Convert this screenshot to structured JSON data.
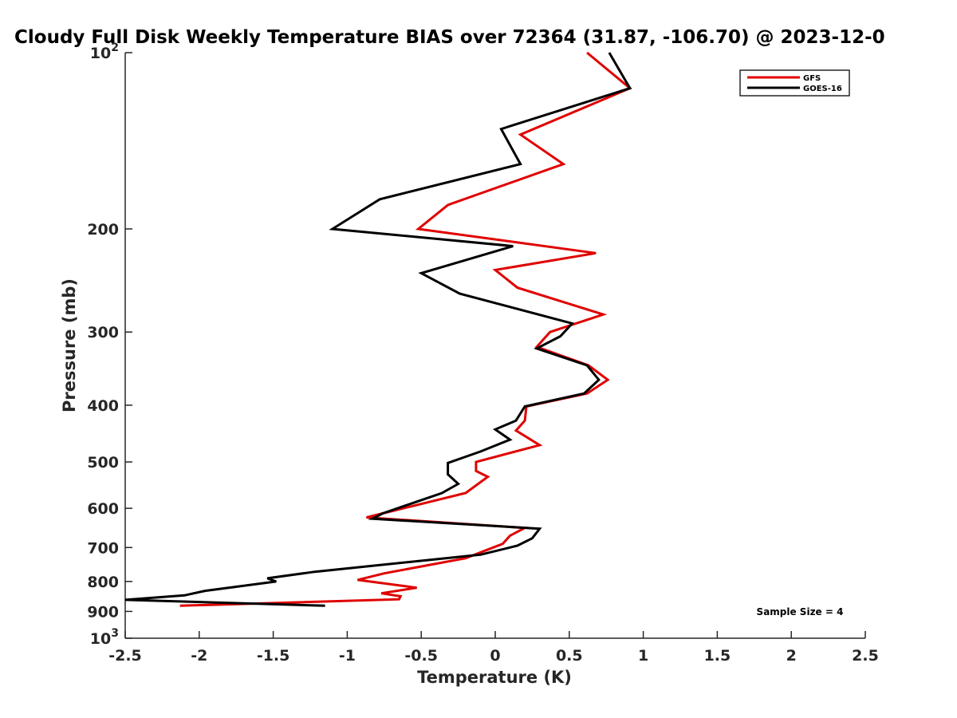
{
  "chart_data": {
    "type": "line",
    "title": "Cloudy Full Disk Weekly Temperature BIAS over 72364 (31.87, -106.70) @ 2023-12-0",
    "xlabel": "Temperature (K)",
    "ylabel": "Pressure (mb)",
    "xlim": [
      -2.5,
      2.5
    ],
    "ylim": [
      100,
      1000
    ],
    "y_scale": "log",
    "y_direction": "reversed",
    "x_ticks": [
      "-2.5",
      "-2",
      "-1.5",
      "-1",
      "-0.5",
      "0",
      "0.5",
      "1",
      "1.5",
      "2",
      "2.5"
    ],
    "y_ticks": [
      {
        "value": 100,
        "base": "10",
        "exp": "2"
      },
      {
        "value": 200,
        "label": "200"
      },
      {
        "value": 300,
        "label": "300"
      },
      {
        "value": 400,
        "label": "400"
      },
      {
        "value": 500,
        "label": "500"
      },
      {
        "value": 600,
        "label": "600"
      },
      {
        "value": 700,
        "label": "700"
      },
      {
        "value": 800,
        "label": "800"
      },
      {
        "value": 900,
        "label": "900"
      },
      {
        "value": 1000,
        "base": "10",
        "exp": "3"
      }
    ],
    "grid": false,
    "legend_position": "top-right",
    "annotation": "Sample Size = 4",
    "series": [
      {
        "name": "GFS",
        "color": "#e00000",
        "points": [
          [
            0.62,
            100
          ],
          [
            0.91,
            115
          ],
          [
            0.17,
            138
          ],
          [
            0.46,
            155
          ],
          [
            -0.32,
            182
          ],
          [
            -0.52,
            200
          ],
          [
            0.68,
            220
          ],
          [
            0.0,
            235
          ],
          [
            0.15,
            252
          ],
          [
            0.73,
            280
          ],
          [
            0.37,
            300
          ],
          [
            0.28,
            318
          ],
          [
            0.63,
            342
          ],
          [
            0.76,
            362
          ],
          [
            0.62,
            382
          ],
          [
            0.21,
            402
          ],
          [
            0.2,
            425
          ],
          [
            0.14,
            442
          ],
          [
            0.3,
            468
          ],
          [
            -0.13,
            500
          ],
          [
            -0.13,
            518
          ],
          [
            -0.05,
            530
          ],
          [
            -0.2,
            565
          ],
          [
            -0.76,
            612
          ],
          [
            -0.87,
            622
          ],
          [
            0.2,
            648
          ],
          [
            0.1,
            668
          ],
          [
            0.05,
            690
          ],
          [
            -0.2,
            730
          ],
          [
            -0.75,
            775
          ],
          [
            -0.93,
            795
          ],
          [
            -0.53,
            820
          ],
          [
            -0.77,
            838
          ],
          [
            -0.64,
            848
          ],
          [
            -0.65,
            858
          ],
          [
            -2.13,
            880
          ]
        ]
      },
      {
        "name": "GOES-16",
        "color": "#000000",
        "points": [
          [
            0.77,
            100
          ],
          [
            0.91,
            115
          ],
          [
            0.04,
            135
          ],
          [
            0.17,
            155
          ],
          [
            -0.78,
            178
          ],
          [
            -1.1,
            200
          ],
          [
            0.12,
            214
          ],
          [
            -0.5,
            238
          ],
          [
            -0.24,
            258
          ],
          [
            0.52,
            290
          ],
          [
            0.44,
            305
          ],
          [
            0.28,
            320
          ],
          [
            0.62,
            342
          ],
          [
            0.7,
            362
          ],
          [
            0.6,
            382
          ],
          [
            0.2,
            402
          ],
          [
            0.14,
            425
          ],
          [
            0.0,
            440
          ],
          [
            0.1,
            458
          ],
          [
            -0.1,
            480
          ],
          [
            -0.32,
            502
          ],
          [
            -0.32,
            525
          ],
          [
            -0.25,
            545
          ],
          [
            -0.36,
            565
          ],
          [
            -0.76,
            612
          ],
          [
            -0.83,
            625
          ],
          [
            0.3,
            650
          ],
          [
            0.25,
            675
          ],
          [
            0.15,
            695
          ],
          [
            -0.1,
            720
          ],
          [
            -1.22,
            770
          ],
          [
            -1.54,
            790
          ],
          [
            -1.48,
            800
          ],
          [
            -1.96,
            830
          ],
          [
            -2.1,
            845
          ],
          [
            -2.5,
            860
          ],
          [
            -1.15,
            880
          ]
        ]
      }
    ]
  }
}
